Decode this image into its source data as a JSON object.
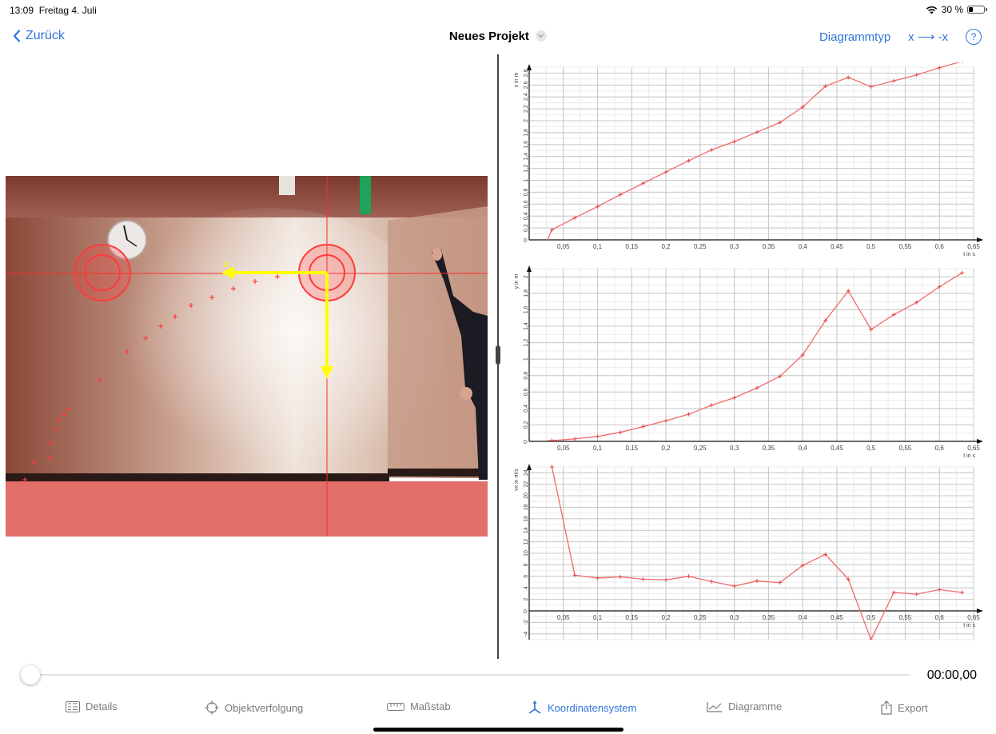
{
  "status_bar": {
    "time": "13:09",
    "date": "Freitag 4. Juli",
    "battery": "30 %",
    "battery_level": 0.3
  },
  "nav": {
    "back_label": "Zurück",
    "title": "Neues Projekt",
    "diagram_type_label": "Diagrammtyp",
    "axis_flip_label": "x ⟶ -x",
    "help_label": "?"
  },
  "video": {
    "axis_label": "x"
  },
  "charts": [
    {
      "id": "x-t",
      "ylabel": "x in m",
      "xlabel": "t in s",
      "xlim": [
        0,
        0.65
      ],
      "ylim": [
        0,
        2.9
      ],
      "yticks": [
        0.2,
        0.4,
        0.6,
        0.8,
        1,
        1.2,
        1.4,
        1.6,
        1.8,
        2,
        2.2,
        2.4,
        2.6,
        2.8
      ],
      "xticks": [
        0.05,
        0.1,
        0.15,
        0.2,
        0.25,
        0.3,
        0.35,
        0.4,
        0.45,
        0.5,
        0.55,
        0.6,
        0.65
      ],
      "x": [
        0.0333,
        0.0667,
        0.1,
        0.1333,
        0.1667,
        0.2,
        0.2333,
        0.2667,
        0.3,
        0.3333,
        0.3667,
        0.4,
        0.4333,
        0.4667,
        0.5,
        0.5333,
        0.5667,
        0.6,
        0.6333
      ],
      "y": [
        0.17,
        0.37,
        0.56,
        0.76,
        0.95,
        1.14,
        1.33,
        1.51,
        1.65,
        1.81,
        1.97,
        2.23,
        2.58,
        2.73,
        2.57,
        2.67,
        2.77,
        2.89,
        3.0
      ],
      "lead_in": [
        0.0267,
        0.0
      ]
    },
    {
      "id": "y-t",
      "ylabel": "y in m",
      "xlabel": "t in s",
      "xlim": [
        0,
        0.65
      ],
      "ylim": [
        0,
        2.1
      ],
      "yticks": [
        0.2,
        0.4,
        0.6,
        0.8,
        1,
        1.2,
        1.4,
        1.6,
        1.8,
        2
      ],
      "xticks": [
        0.05,
        0.1,
        0.15,
        0.2,
        0.25,
        0.3,
        0.35,
        0.4,
        0.45,
        0.5,
        0.55,
        0.6,
        0.65
      ],
      "x": [
        0.0333,
        0.0667,
        0.1,
        0.1333,
        0.1667,
        0.2,
        0.2333,
        0.2667,
        0.3,
        0.3333,
        0.3667,
        0.4,
        0.4333,
        0.4667,
        0.5,
        0.5333,
        0.5667,
        0.6,
        0.6333
      ],
      "y": [
        0.01,
        0.03,
        0.06,
        0.11,
        0.18,
        0.25,
        0.33,
        0.44,
        0.53,
        0.65,
        0.79,
        1.05,
        1.47,
        1.83,
        1.36,
        1.54,
        1.69,
        1.88,
        2.05
      ],
      "lead_in": [
        0.0267,
        0.01
      ]
    },
    {
      "id": "vx-t",
      "ylabel": "vx in m/s",
      "xlabel": "t in s",
      "xlim": [
        0,
        0.65
      ],
      "ylim": [
        -5,
        25
      ],
      "yticks": [
        -4,
        -2,
        2,
        4,
        6,
        8,
        10,
        12,
        14,
        16,
        18,
        20,
        22,
        24
      ],
      "xticks": [
        0.05,
        0.1,
        0.15,
        0.2,
        0.25,
        0.3,
        0.35,
        0.4,
        0.45,
        0.5,
        0.55,
        0.6,
        0.65
      ],
      "x": [
        0.0333,
        0.0667,
        0.1,
        0.1333,
        0.1667,
        0.2,
        0.2333,
        0.2667,
        0.3,
        0.3333,
        0.3667,
        0.4,
        0.4333,
        0.4667,
        0.5,
        0.5333,
        0.5667,
        0.6,
        0.6333
      ],
      "y": [
        25,
        6.2,
        5.7,
        5.9,
        5.5,
        5.4,
        6.0,
        5.1,
        4.3,
        5.2,
        4.9,
        7.9,
        9.8,
        5.5,
        -5.0,
        3.2,
        2.9,
        3.7,
        3.2
      ]
    }
  ],
  "timeline": {
    "timecode": "00:00,00",
    "position": 0.0
  },
  "tabs": [
    {
      "label": "Details",
      "icon": "details-icon",
      "active": false
    },
    {
      "label": "Objektverfolgung",
      "icon": "crosshair-icon",
      "active": false
    },
    {
      "label": "Maßstab",
      "icon": "ruler-icon",
      "active": false
    },
    {
      "label": "Koordinatensystem",
      "icon": "axes-icon",
      "active": true
    },
    {
      "label": "Diagramme",
      "icon": "line-chart-icon",
      "active": false
    },
    {
      "label": "Export",
      "icon": "share-icon",
      "active": false
    }
  ],
  "colors": {
    "accent": "#2f73d9",
    "plot_line": "#f26a6a",
    "marker": "#ff3b3b",
    "axis_arrow": "#ffff00"
  }
}
